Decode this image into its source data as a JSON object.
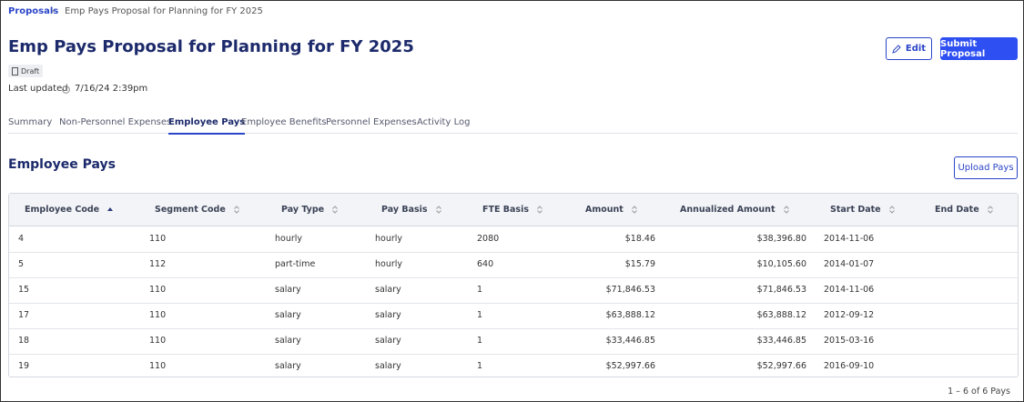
{
  "breadcrumb": {
    "root": "Proposals",
    "current": "Emp Pays Proposal for Planning for FY 2025"
  },
  "header": {
    "title": "Emp Pays Proposal for Planning for FY 2025",
    "status": "Draft",
    "last_updated_label": "Last updated",
    "last_updated": "7/16/24 2:39pm",
    "edit_button": "Edit",
    "submit_button": "Submit Proposal"
  },
  "tabs": {
    "items": [
      "Summary",
      "Non-Personnel Expenses",
      "Employee Pays",
      "Employee Benefits",
      "Personnel Expenses",
      "Activity Log"
    ],
    "active": "Employee Pays"
  },
  "section": {
    "title": "Employee Pays",
    "upload_button": "Upload Pays"
  },
  "table": {
    "columns": [
      "Employee Code",
      "Segment Code",
      "Pay Type",
      "Pay Basis",
      "FTE Basis",
      "Amount",
      "Annualized Amount",
      "Start Date",
      "End Date"
    ],
    "rows": [
      [
        "4",
        "110",
        "hourly",
        "hourly",
        "2080",
        "$18.46",
        "$38,396.80",
        "2014-11-06"
      ],
      [
        "5",
        "112",
        "part-time",
        "hourly",
        "640",
        "$15.79",
        "$10,105.60",
        "2014-01-07"
      ],
      [
        "15",
        "110",
        "salary",
        "salary",
        "1",
        "$71,846.53",
        "$71,846.53",
        "2014-11-06"
      ],
      [
        "17",
        "110",
        "salary",
        "salary",
        "1",
        "$63,888.12",
        "$63,888.12",
        "2012-09-12"
      ],
      [
        "18",
        "110",
        "salary",
        "salary",
        "1",
        "$33,446.85",
        "$33,446.85",
        "2015-03-16"
      ],
      [
        "19",
        "110",
        "salary",
        "salary",
        "1",
        "$52,997.66",
        "$52,997.66",
        "2016-09-10"
      ]
    ],
    "footer": "1 – 6 of 6 Pays"
  }
}
